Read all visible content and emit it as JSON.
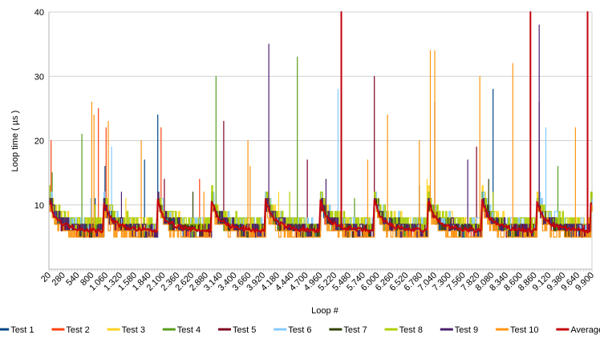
{
  "chart_data": {
    "type": "line",
    "title": "",
    "xlabel": "Loop #",
    "ylabel": "Loop time ( µs )",
    "ylim": [
      0,
      40
    ],
    "yticks": [
      10,
      20,
      30,
      40
    ],
    "xlim": [
      20,
      9900
    ],
    "xtick_labels": [
      "20",
      "280",
      "540",
      "800",
      "1.060",
      "1.320",
      "1.580",
      "1.840",
      "2.100",
      "2.360",
      "2.620",
      "2.880",
      "3.140",
      "3.400",
      "3.660",
      "3.920",
      "4.180",
      "4.440",
      "4.700",
      "4.960",
      "5.220",
      "5.480",
      "5.740",
      "6.000",
      "6.260",
      "6.520",
      "6.780",
      "7.040",
      "7.300",
      "7.560",
      "7.820",
      "8.080",
      "8.340",
      "8.600",
      "8.860",
      "9.120",
      "9.380",
      "9.640",
      "9.900"
    ],
    "grid": true,
    "legend_position": "bottom",
    "cycle_length": 985,
    "average_cycle_profile": [
      10.8,
      8.2,
      7.3,
      6.8,
      6.5,
      6.3,
      6.2,
      6.1,
      6.0,
      6.0
    ],
    "series": [
      {
        "name": "Test 1",
        "color": "#004586",
        "offset": 0,
        "spikes": [
          [
            35,
            13
          ],
          [
            855,
            11
          ],
          [
            1030,
            16
          ],
          [
            1765,
            17
          ],
          [
            2000,
            24
          ],
          [
            6750,
            13
          ],
          [
            8100,
            28
          ]
        ]
      },
      {
        "name": "Test 2",
        "color": "#ff420e",
        "offset": 0,
        "spikes": [
          [
            64,
            20
          ],
          [
            915,
            25
          ],
          [
            1060,
            22
          ],
          [
            2060,
            22
          ],
          [
            2760,
            14
          ]
        ]
      },
      {
        "name": "Test 3",
        "color": "#ffd320",
        "offset": 1,
        "spikes": [
          [
            1410,
            11
          ],
          [
            4200,
            12
          ],
          [
            6900,
            14
          ]
        ]
      },
      {
        "name": "Test 4",
        "color": "#579d1c",
        "offset": 0,
        "spikes": [
          [
            70,
            15
          ],
          [
            620,
            21
          ],
          [
            3055,
            30
          ],
          [
            4535,
            33
          ],
          [
            5580,
            11
          ],
          [
            9270,
            16
          ]
        ]
      },
      {
        "name": "Test 5",
        "color": "#7e0021",
        "offset": 0,
        "spikes": [
          [
            2120,
            14
          ],
          [
            3200,
            23
          ],
          [
            4710,
            17
          ],
          [
            5940,
            30
          ],
          [
            7040,
            26
          ],
          [
            7790,
            19
          ],
          [
            8930,
            26
          ]
        ]
      },
      {
        "name": "Test 6",
        "color": "#83caff",
        "offset": 1,
        "spikes": [
          [
            770,
            11
          ],
          [
            1150,
            19
          ],
          [
            5270,
            28
          ],
          [
            9050,
            22
          ]
        ]
      },
      {
        "name": "Test 7",
        "color": "#314004",
        "offset": 0,
        "spikes": [
          [
            2640,
            12
          ],
          [
            6020,
            11
          ],
          [
            8010,
            14
          ]
        ]
      },
      {
        "name": "Test 8",
        "color": "#aecf00",
        "offset": 1,
        "spikes": [
          [
            855,
            10
          ],
          [
            4400,
            12
          ],
          [
            8100,
            12
          ]
        ]
      },
      {
        "name": "Test 9",
        "color": "#4b1f6f",
        "offset": 0,
        "spikes": [
          [
            1330,
            12
          ],
          [
            4010,
            35
          ],
          [
            5060,
            14
          ],
          [
            7640,
            17
          ],
          [
            8930,
            38
          ]
        ]
      },
      {
        "name": "Test 10",
        "color": "#ff950e",
        "offset": -1,
        "spikes": [
          [
            800,
            26
          ],
          [
            830,
            24
          ],
          [
            1090,
            23
          ],
          [
            1705,
            20
          ],
          [
            2835,
            12
          ],
          [
            3640,
            20
          ],
          [
            3685,
            16
          ],
          [
            5820,
            17
          ],
          [
            6180,
            24
          ],
          [
            6750,
            20
          ],
          [
            6955,
            34
          ],
          [
            7040,
            34
          ],
          [
            7860,
            30
          ],
          [
            8460,
            32
          ],
          [
            9590,
            22
          ]
        ]
      },
      {
        "name": "Average",
        "color": "#c5000b",
        "offset": 0,
        "spikes": [
          [
            5330,
            40
          ],
          [
            8770,
            40
          ],
          [
            9810,
            40
          ]
        ]
      }
    ]
  }
}
